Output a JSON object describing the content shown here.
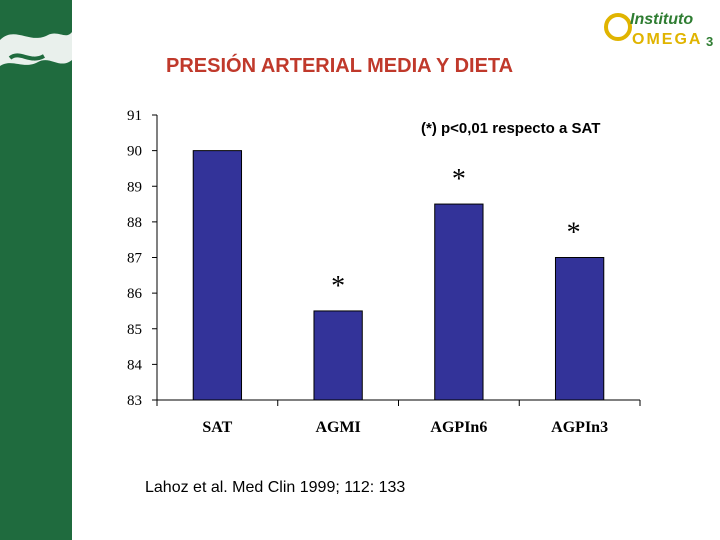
{
  "colors": {
    "sidebar": "#1f6b3e",
    "bar": "#333399",
    "title": "#c0392b",
    "logo_green": "#2f7d32",
    "logo_yellow": "#e0b400"
  },
  "logo": {
    "line1": "Instituto",
    "line2": "OMEGA",
    "suffix": "3"
  },
  "title": "PRESIÓN ARTERIAL MEDIA Y DIETA",
  "note": "(*) p<0,01 respecto a SAT",
  "source": "Lahoz et al. Med Clin 1999; 112: 133",
  "chart_data": {
    "type": "bar",
    "title": "PRESIÓN ARTERIAL MEDIA Y DIETA",
    "categories": [
      "SAT",
      "AGMI",
      "AGPIn6",
      "AGPIn3"
    ],
    "values": [
      90,
      85.5,
      88.5,
      87
    ],
    "significant": [
      false,
      true,
      true,
      true
    ],
    "significance_marker": "*",
    "ylim": [
      83,
      91
    ],
    "yticks": [
      83,
      84,
      85,
      86,
      87,
      88,
      89,
      90,
      91
    ],
    "xlabel": "",
    "ylabel": "",
    "grid": false,
    "legend": "none"
  }
}
